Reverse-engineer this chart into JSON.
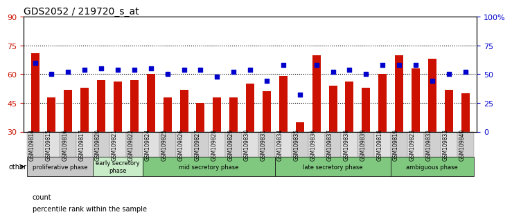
{
  "title": "GDS2052 / 219720_s_at",
  "samples": [
    "GSM109814",
    "GSM109815",
    "GSM109816",
    "GSM109817",
    "GSM109820",
    "GSM109821",
    "GSM109822",
    "GSM109824",
    "GSM109825",
    "GSM109826",
    "GSM109827",
    "GSM109828",
    "GSM109829",
    "GSM109830",
    "GSM109831",
    "GSM109834",
    "GSM109835",
    "GSM109836",
    "GSM109837",
    "GSM109838",
    "GSM109839",
    "GSM109818",
    "GSM109819",
    "GSM109823",
    "GSM109832",
    "GSM109833",
    "GSM109840"
  ],
  "count_values": [
    71,
    48,
    52,
    53,
    57,
    56,
    57,
    60,
    48,
    52,
    45,
    48,
    48,
    55,
    51,
    59,
    35,
    70,
    54,
    56,
    53,
    60,
    70,
    63,
    68,
    52,
    50
  ],
  "percentile_values_pct": [
    60,
    50,
    52,
    54,
    55,
    54,
    54,
    55,
    50,
    54,
    54,
    48,
    52,
    54,
    44,
    58,
    32,
    58,
    52,
    54,
    50,
    58,
    58,
    58,
    44,
    50,
    52
  ],
  "ylim_left": [
    30,
    90
  ],
  "ylim_right": [
    0,
    100
  ],
  "yticks_left": [
    30,
    45,
    60,
    75,
    90
  ],
  "yticks_right": [
    0,
    25,
    50,
    75,
    100
  ],
  "ytick_labels_right": [
    "0",
    "25",
    "50",
    "75",
    "100%"
  ],
  "grid_values": [
    45,
    60,
    75
  ],
  "bar_color": "#cc1100",
  "dot_color": "#0000cc",
  "bar_width": 0.5,
  "dot_size": 18,
  "phases": [
    {
      "label": "proliferative phase",
      "start": 0,
      "end": 4,
      "color": "#c8c8c8"
    },
    {
      "label": "early secretory\nphase",
      "start": 4,
      "end": 7,
      "color": "#c8ecc8"
    },
    {
      "label": "mid secretory phase",
      "start": 7,
      "end": 15,
      "color": "#80c880"
    },
    {
      "label": "late secretory phase",
      "start": 15,
      "end": 22,
      "color": "#80c880"
    },
    {
      "label": "ambiguous phase",
      "start": 22,
      "end": 27,
      "color": "#80c880"
    }
  ],
  "other_label": "other",
  "legend_count_label": "count",
  "legend_percentile_label": "percentile rank within the sample",
  "title_fontsize": 10,
  "axis_color_left": "#cc1100",
  "axis_color_right": "#0000cc"
}
